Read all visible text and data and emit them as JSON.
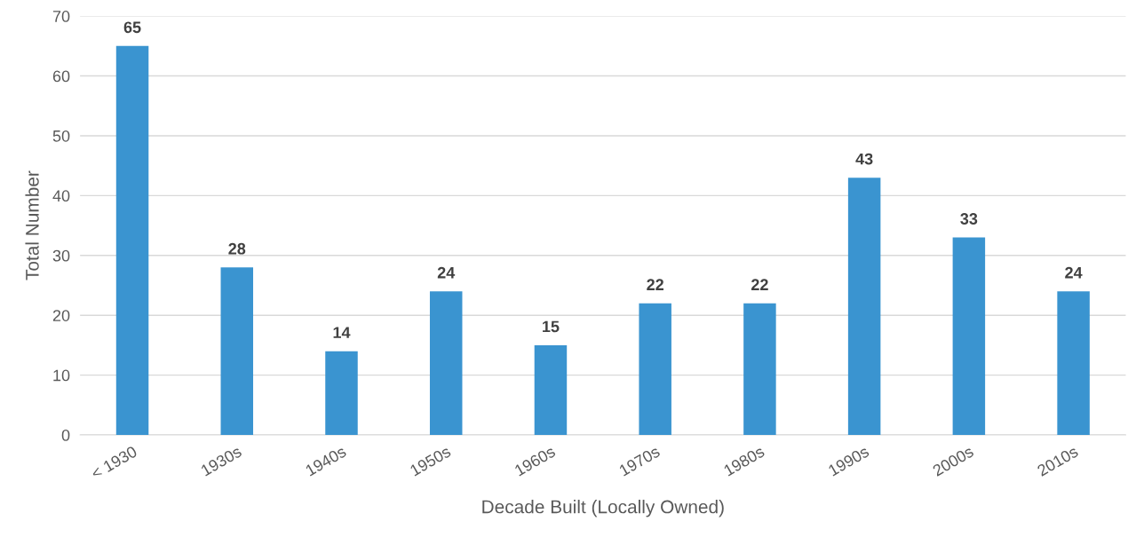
{
  "chart_data": {
    "type": "bar",
    "xlabel": "Decade Built (Locally Owned)",
    "ylabel": "Total Number",
    "categories": [
      "< 1930",
      "1930s",
      "1940s",
      "1950s",
      "1960s",
      "1970s",
      "1980s",
      "1990s",
      "2000s",
      "2010s"
    ],
    "values": [
      65,
      28,
      14,
      24,
      15,
      22,
      22,
      43,
      33,
      24
    ],
    "color": "#3a94d0",
    "ylim": [
      0,
      70
    ],
    "yticks": [
      0,
      10,
      20,
      30,
      40,
      50,
      60,
      70
    ],
    "grid": "y",
    "data_labels": true
  }
}
